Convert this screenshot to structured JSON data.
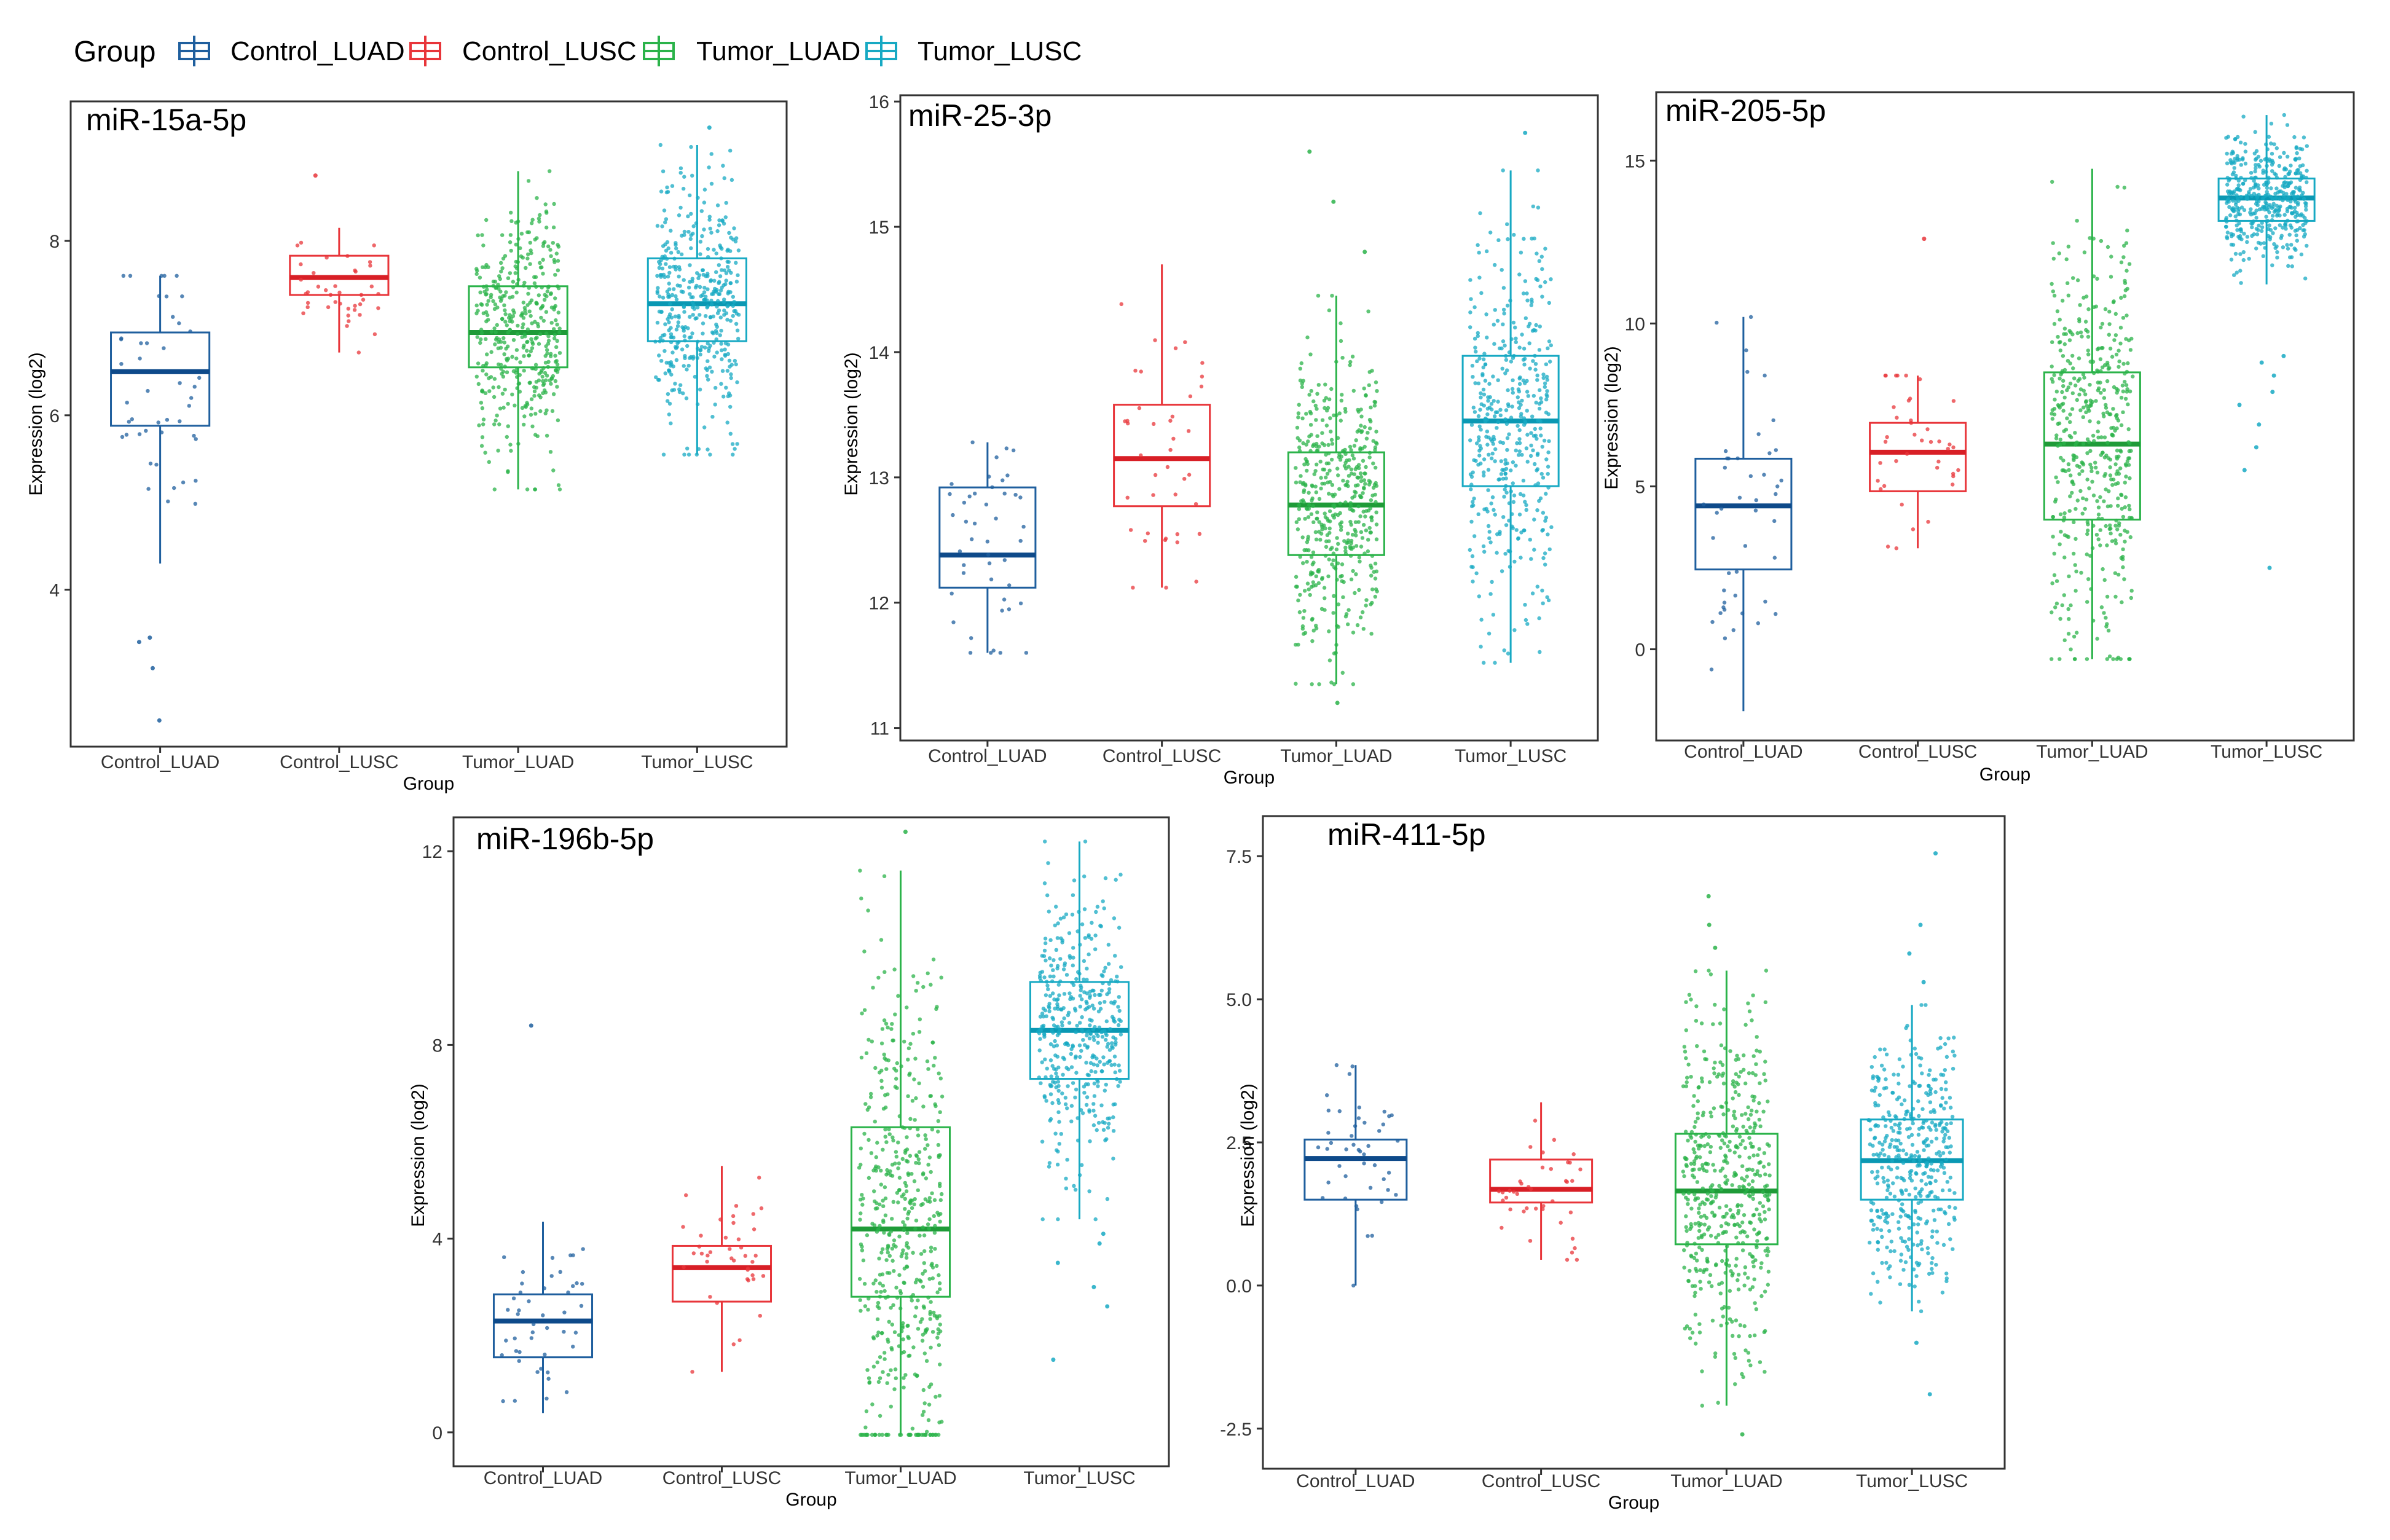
{
  "legend": {
    "title": "Group",
    "entries": [
      {
        "label": "Control_LUAD",
        "color": "#1F5F9E"
      },
      {
        "label": "Control_LUSC",
        "color": "#E8353A"
      },
      {
        "label": "Tumor_LUAD",
        "color": "#2BB34A"
      },
      {
        "label": "Tumor_LUSC",
        "color": "#17A9C3"
      }
    ]
  },
  "chart_data": [
    {
      "type": "box",
      "title": "miR-15a-5p",
      "xlabel": "Group",
      "ylabel": "Expression (log2)",
      "ylim": [
        2.2,
        9.6
      ],
      "yticks": [
        {
          "v": 4,
          "label": "4"
        },
        {
          "v": 6,
          "label": "6"
        },
        {
          "v": 8,
          "label": "8"
        }
      ],
      "categories": [
        "Control_LUAD",
        "Control_LUSC",
        "Tumor_LUAD",
        "Tumor_LUSC"
      ],
      "boxes": [
        {
          "q1": 5.88,
          "median": 6.5,
          "q3": 6.95,
          "wlo": 4.3,
          "whi": 7.6,
          "n": 45,
          "outliers": [
            2.5,
            3.1,
            3.4,
            3.45
          ]
        },
        {
          "q1": 7.38,
          "median": 7.58,
          "q3": 7.83,
          "wlo": 6.72,
          "whi": 8.15,
          "n": 40,
          "outliers": [
            8.75
          ]
        },
        {
          "q1": 6.55,
          "median": 6.95,
          "q3": 7.48,
          "wlo": 5.15,
          "whi": 8.8,
          "n": 420,
          "outliers": []
        },
        {
          "q1": 6.85,
          "median": 7.28,
          "q3": 7.8,
          "wlo": 5.55,
          "whi": 9.1,
          "n": 420,
          "outliers": [
            9.3
          ]
        }
      ]
    },
    {
      "type": "box",
      "title": "miR-25-3p",
      "xlabel": "Group",
      "ylabel": "Expression (log2)",
      "ylim": [
        10.9,
        16.05
      ],
      "yticks": [
        {
          "v": 11,
          "label": "11"
        },
        {
          "v": 12,
          "label": "12"
        },
        {
          "v": 13,
          "label": "13"
        },
        {
          "v": 14,
          "label": "14"
        },
        {
          "v": 15,
          "label": "15"
        },
        {
          "v": 16,
          "label": "16"
        }
      ],
      "categories": [
        "Control_LUAD",
        "Control_LUSC",
        "Tumor_LUAD",
        "Tumor_LUSC"
      ],
      "boxes": [
        {
          "q1": 12.12,
          "median": 12.38,
          "q3": 12.92,
          "wlo": 11.6,
          "whi": 13.28,
          "n": 45,
          "outliers": []
        },
        {
          "q1": 12.77,
          "median": 13.15,
          "q3": 13.58,
          "wlo": 12.12,
          "whi": 14.7,
          "n": 40,
          "outliers": []
        },
        {
          "q1": 12.38,
          "median": 12.78,
          "q3": 13.2,
          "wlo": 11.35,
          "whi": 14.45,
          "n": 480,
          "outliers": [
            15.6,
            15.2,
            14.8,
            11.2
          ]
        },
        {
          "q1": 12.93,
          "median": 13.45,
          "q3": 13.97,
          "wlo": 11.52,
          "whi": 15.45,
          "n": 420,
          "outliers": [
            15.75
          ]
        }
      ]
    },
    {
      "type": "box",
      "title": "miR-205-5p",
      "xlabel": "Group",
      "ylabel": "Expression (log2)",
      "ylim": [
        -2.8,
        17.1
      ],
      "yticks": [
        {
          "v": 0,
          "label": "0"
        },
        {
          "v": 5,
          "label": "5"
        },
        {
          "v": 10,
          "label": "10"
        },
        {
          "v": 15,
          "label": "15"
        }
      ],
      "categories": [
        "Control_LUAD",
        "Control_LUSC",
        "Tumor_LUAD",
        "Tumor_LUSC"
      ],
      "boxes": [
        {
          "q1": 2.45,
          "median": 4.4,
          "q3": 5.85,
          "wlo": -1.9,
          "whi": 10.2,
          "n": 45,
          "outliers": []
        },
        {
          "q1": 4.85,
          "median": 6.05,
          "q3": 6.95,
          "wlo": 3.1,
          "whi": 8.4,
          "n": 40,
          "outliers": [
            12.6
          ]
        },
        {
          "q1": 3.98,
          "median": 6.3,
          "q3": 8.5,
          "wlo": -0.3,
          "whi": 14.75,
          "n": 480,
          "outliers": []
        },
        {
          "q1": 13.15,
          "median": 13.85,
          "q3": 14.45,
          "wlo": 11.2,
          "whi": 16.4,
          "n": 420,
          "outliers": [
            9.0,
            8.4,
            7.5,
            6.9,
            6.2,
            5.5,
            2.5,
            8.8,
            7.9
          ]
        }
      ]
    },
    {
      "type": "box",
      "title": "miR-196b-5p",
      "xlabel": "Group",
      "ylabel": "Expression (log2)",
      "ylim": [
        -0.7,
        12.7
      ],
      "yticks": [
        {
          "v": 0,
          "label": "0"
        },
        {
          "v": 4,
          "label": "4"
        },
        {
          "v": 8,
          "label": "8"
        },
        {
          "v": 12,
          "label": "12"
        }
      ],
      "categories": [
        "Control_LUAD",
        "Control_LUSC",
        "Tumor_LUAD",
        "Tumor_LUSC"
      ],
      "boxes": [
        {
          "q1": 1.55,
          "median": 2.3,
          "q3": 2.85,
          "wlo": 0.4,
          "whi": 4.35,
          "n": 45,
          "outliers": [
            8.4
          ]
        },
        {
          "q1": 2.7,
          "median": 3.4,
          "q3": 3.85,
          "wlo": 1.25,
          "whi": 5.5,
          "n": 40,
          "outliers": []
        },
        {
          "q1": 2.8,
          "median": 4.2,
          "q3": 6.3,
          "wlo": -0.05,
          "whi": 11.6,
          "n": 500,
          "outliers": [
            12.4
          ]
        },
        {
          "q1": 7.3,
          "median": 8.3,
          "q3": 9.3,
          "wlo": 4.4,
          "whi": 12.2,
          "n": 420,
          "outliers": [
            3.9,
            3.5,
            3.0,
            2.6,
            1.5,
            4.1
          ]
        }
      ]
    },
    {
      "type": "box",
      "title": "miR-411-5p",
      "xlabel": "Group",
      "ylabel": "Expression (log2)",
      "ylim": [
        -3.2,
        8.2
      ],
      "yticks": [
        {
          "v": -2.5,
          "label": "-2.5"
        },
        {
          "v": 0,
          "label": "0.0"
        },
        {
          "v": 2.5,
          "label": "2.5"
        },
        {
          "v": 5,
          "label": "5.0"
        },
        {
          "v": 7.5,
          "label": "7.5"
        }
      ],
      "categories": [
        "Control_LUAD",
        "Control_LUSC",
        "Tumor_LUAD",
        "Tumor_LUSC"
      ],
      "boxes": [
        {
          "q1": 1.5,
          "median": 2.22,
          "q3": 2.55,
          "wlo": 0.0,
          "whi": 3.85,
          "n": 45,
          "outliers": []
        },
        {
          "q1": 1.45,
          "median": 1.68,
          "q3": 2.2,
          "wlo": 0.45,
          "whi": 3.2,
          "n": 40,
          "outliers": []
        },
        {
          "q1": 0.72,
          "median": 1.65,
          "q3": 2.65,
          "wlo": -2.1,
          "whi": 5.5,
          "n": 500,
          "outliers": [
            6.8,
            6.3,
            5.9,
            -2.6
          ]
        },
        {
          "q1": 1.5,
          "median": 2.18,
          "q3": 2.9,
          "wlo": -0.45,
          "whi": 4.9,
          "n": 420,
          "outliers": [
            7.55,
            6.3,
            5.8,
            -1.0,
            -1.9,
            5.3
          ]
        }
      ]
    }
  ]
}
